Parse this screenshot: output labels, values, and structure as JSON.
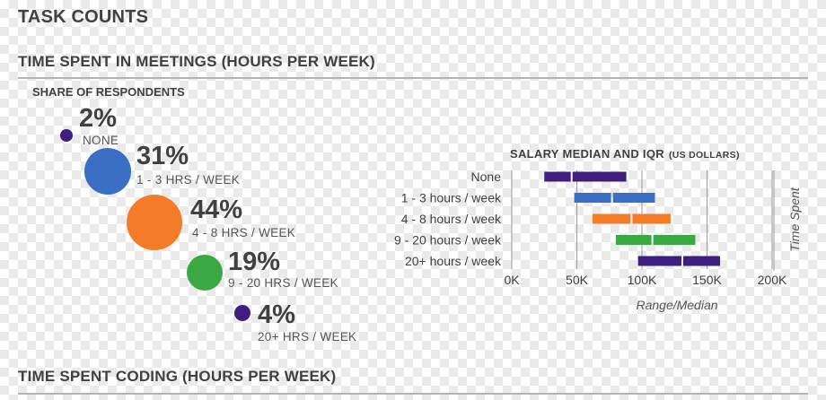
{
  "headers": {
    "page": "TASK COUNTS",
    "meetings": "TIME SPENT IN MEETINGS (HOURS PER WEEK)",
    "coding": "TIME SPENT CODING (HOURS PER WEEK)"
  },
  "share": {
    "title": "SHARE OF RESPONDENTS",
    "items": [
      {
        "pct": "2%",
        "label": "NONE",
        "color": "#3e1f7f"
      },
      {
        "pct": "31%",
        "label": "1 - 3 HRS / WEEK",
        "color": "#3a6fc4"
      },
      {
        "pct": "44%",
        "label": "4 - 8 HRS / WEEK",
        "color": "#f47b27"
      },
      {
        "pct": "19%",
        "label": "9 - 20 HRS / WEEK",
        "color": "#3aa843"
      },
      {
        "pct": "4%",
        "label": "20+ HRS / WEEK",
        "color": "#3e1f7f"
      }
    ]
  },
  "chart_data": {
    "type": "range-bar",
    "title": "SALARY MEDIAN AND IQR",
    "title_suffix": "(US DOLLARS)",
    "xlabel": "Range/Median",
    "ylabel": "Time Spent",
    "xlim": [
      0,
      200000
    ],
    "xticks": [
      0,
      50000,
      100000,
      150000,
      200000
    ],
    "xtick_labels": [
      "0K",
      "50K",
      "100K",
      "150K",
      "200K"
    ],
    "categories": [
      "None",
      "1 - 3 hours / week",
      "4 - 8 hours / week",
      "9 - 20 hours / week",
      "20+ hours / week"
    ],
    "colors": [
      "#3e1f7f",
      "#3a6fc4",
      "#f47b27",
      "#3aa843",
      "#3e1f7f"
    ],
    "q1": [
      25000,
      48000,
      62000,
      80000,
      97000
    ],
    "median": [
      46000,
      77000,
      92000,
      108000,
      131000
    ],
    "q3": [
      88000,
      110000,
      122000,
      141000,
      160000
    ],
    "grid": true
  }
}
